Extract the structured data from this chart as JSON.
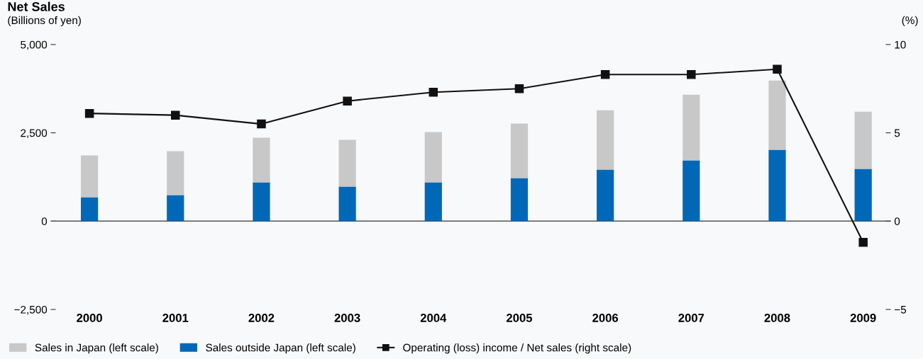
{
  "chart_data": {
    "type": "bar",
    "title": "Net Sales",
    "ylabel": "(Billions of yen)",
    "y2label": "(%)",
    "categories": [
      "2000",
      "2001",
      "2002",
      "2003",
      "2004",
      "2005",
      "2006",
      "2007",
      "2008",
      "2009"
    ],
    "stacked": true,
    "series": [
      {
        "name": "Sales outside Japan (left scale)",
        "color": "#0068b7",
        "values": [
          680,
          740,
          1100,
          980,
          1100,
          1220,
          1460,
          1720,
          2020,
          1480
        ]
      },
      {
        "name": "Sales in Japan (left scale)",
        "color": "#c8c8c8",
        "values": [
          1180,
          1240,
          1260,
          1320,
          1420,
          1540,
          1680,
          1860,
          1960,
          1620
        ]
      },
      {
        "name": "Operating (loss) income / Net sales (right scale)",
        "type": "line",
        "axis": "y2",
        "color": "#111111",
        "marker": "square",
        "line_style": "solid",
        "values": [
          6.1,
          6.0,
          5.5,
          6.8,
          7.3,
          7.5,
          8.3,
          8.3,
          8.6,
          -1.2
        ]
      }
    ],
    "ylim": [
      -2500,
      5000
    ],
    "yticks": [
      {
        "value": -2500,
        "label": "−2,500"
      },
      0,
      {
        "value": 2500,
        "label": "2,500"
      },
      {
        "value": 5000,
        "label": "5,000"
      }
    ],
    "y2lim": [
      -5,
      10
    ],
    "y2ticks": [
      {
        "value": -5,
        "label": "−5"
      },
      0,
      5,
      10
    ],
    "ref_lines": [
      {
        "axis": "y",
        "value": 0,
        "color": "#555555"
      }
    ],
    "grid": false,
    "legend": "bottom"
  }
}
